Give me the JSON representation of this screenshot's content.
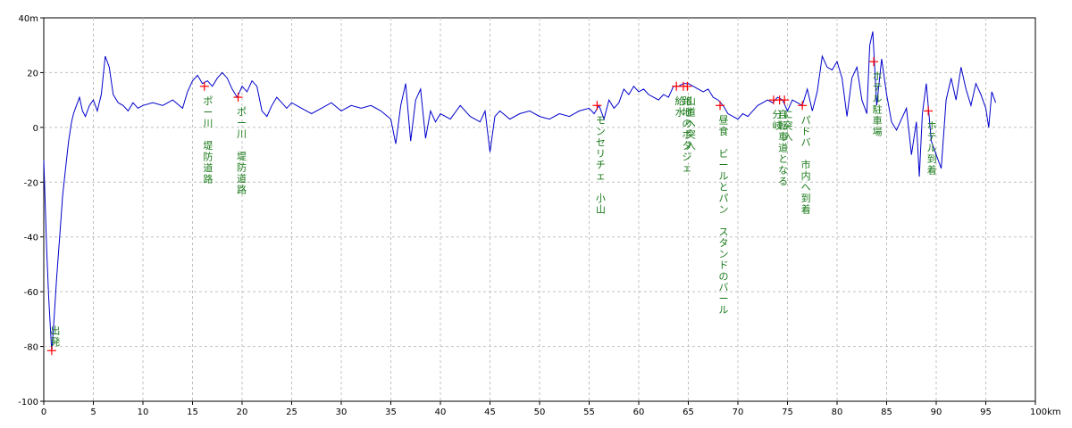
{
  "chart_data": {
    "type": "line",
    "title": "",
    "xlabel": "",
    "ylabel": "",
    "x_unit": "km",
    "y_unit": "m",
    "xlim": [
      0,
      100
    ],
    "ylim": [
      -100,
      40
    ],
    "grid": true,
    "x_ticks": [
      0,
      5,
      10,
      15,
      20,
      25,
      30,
      35,
      40,
      45,
      50,
      55,
      60,
      65,
      70,
      75,
      80,
      85,
      90,
      95,
      100
    ],
    "y_ticks": [
      -100,
      -80,
      -60,
      -40,
      -20,
      0,
      20,
      40
    ],
    "x_tick_labels": [
      "0",
      "5",
      "10",
      "15",
      "20",
      "25",
      "30",
      "35",
      "40",
      "45",
      "50",
      "55",
      "60",
      "65",
      "70",
      "75",
      "80",
      "85",
      "90",
      "95",
      "100km"
    ],
    "y_tick_labels": [
      "-100",
      "-80",
      "-60",
      "-40",
      "-20",
      "0",
      "20",
      "40m"
    ],
    "line_color": "#0000cc",
    "marker_color": "#ff0000",
    "annotation_color": "#1a7a1a",
    "series": [
      {
        "points": [
          [
            0,
            -12
          ],
          [
            0.3,
            -45
          ],
          [
            0.5,
            -62
          ],
          [
            0.8,
            -82
          ],
          [
            1.0,
            -72
          ],
          [
            1.3,
            -55
          ],
          [
            1.6,
            -40
          ],
          [
            1.9,
            -25
          ],
          [
            2.2,
            -15
          ],
          [
            2.5,
            -5
          ],
          [
            2.8,
            2
          ],
          [
            3.0,
            5
          ],
          [
            3.3,
            8
          ],
          [
            3.6,
            11
          ],
          [
            3.9,
            6
          ],
          [
            4.2,
            4
          ],
          [
            4.6,
            8
          ],
          [
            5.0,
            10
          ],
          [
            5.4,
            6
          ],
          [
            5.8,
            12
          ],
          [
            6.2,
            26
          ],
          [
            6.6,
            22
          ],
          [
            7.0,
            12
          ],
          [
            7.5,
            9
          ],
          [
            8.0,
            8
          ],
          [
            8.5,
            6
          ],
          [
            9.0,
            9
          ],
          [
            9.5,
            7
          ],
          [
            10,
            8
          ],
          [
            11,
            9
          ],
          [
            12,
            8
          ],
          [
            13,
            10
          ],
          [
            14,
            7
          ],
          [
            14.5,
            13
          ],
          [
            15,
            17
          ],
          [
            15.5,
            19
          ],
          [
            16,
            16
          ],
          [
            16.5,
            17
          ],
          [
            17,
            15
          ],
          [
            17.5,
            18
          ],
          [
            18,
            20
          ],
          [
            18.5,
            18
          ],
          [
            19,
            14
          ],
          [
            19.5,
            11
          ],
          [
            20,
            15
          ],
          [
            20.5,
            13
          ],
          [
            21,
            17
          ],
          [
            21.5,
            15
          ],
          [
            22,
            6
          ],
          [
            22.5,
            4
          ],
          [
            23,
            8
          ],
          [
            23.5,
            11
          ],
          [
            24,
            9
          ],
          [
            24.5,
            7
          ],
          [
            25,
            9
          ],
          [
            26,
            7
          ],
          [
            27,
            5
          ],
          [
            28,
            7
          ],
          [
            29,
            9
          ],
          [
            30,
            6
          ],
          [
            31,
            8
          ],
          [
            32,
            7
          ],
          [
            33,
            8
          ],
          [
            34,
            6
          ],
          [
            35,
            3
          ],
          [
            35.5,
            -6
          ],
          [
            36,
            8
          ],
          [
            36.5,
            16
          ],
          [
            37,
            -5
          ],
          [
            37.5,
            10
          ],
          [
            38,
            14
          ],
          [
            38.5,
            -4
          ],
          [
            39,
            6
          ],
          [
            39.5,
            2
          ],
          [
            40,
            5
          ],
          [
            41,
            3
          ],
          [
            42,
            8
          ],
          [
            43,
            4
          ],
          [
            44,
            2
          ],
          [
            44.5,
            6
          ],
          [
            45,
            -9
          ],
          [
            45.5,
            4
          ],
          [
            46,
            6
          ],
          [
            47,
            3
          ],
          [
            48,
            5
          ],
          [
            49,
            6
          ],
          [
            50,
            4
          ],
          [
            51,
            3
          ],
          [
            52,
            5
          ],
          [
            53,
            4
          ],
          [
            54,
            6
          ],
          [
            55,
            7
          ],
          [
            55.5,
            5
          ],
          [
            56,
            8
          ],
          [
            56.5,
            3
          ],
          [
            57,
            10
          ],
          [
            57.5,
            7
          ],
          [
            58,
            9
          ],
          [
            58.5,
            14
          ],
          [
            59,
            12
          ],
          [
            59.5,
            15
          ],
          [
            60,
            13
          ],
          [
            60.5,
            14
          ],
          [
            61,
            12
          ],
          [
            61.5,
            11
          ],
          [
            62,
            10
          ],
          [
            62.5,
            12
          ],
          [
            63,
            11
          ],
          [
            63.5,
            15
          ],
          [
            64,
            15
          ],
          [
            64.5,
            16
          ],
          [
            65,
            16
          ],
          [
            65.5,
            15
          ],
          [
            66,
            14
          ],
          [
            66.5,
            13
          ],
          [
            67,
            14
          ],
          [
            67.5,
            11
          ],
          [
            68,
            10
          ],
          [
            68.5,
            8
          ],
          [
            69,
            5
          ],
          [
            69.5,
            4
          ],
          [
            70,
            3
          ],
          [
            70.5,
            5
          ],
          [
            71,
            4
          ],
          [
            71.5,
            6
          ],
          [
            72,
            8
          ],
          [
            72.5,
            9
          ],
          [
            73,
            10
          ],
          [
            73.5,
            9
          ],
          [
            74,
            11
          ],
          [
            74.5,
            10
          ],
          [
            75,
            6
          ],
          [
            75.5,
            10
          ],
          [
            76,
            9
          ],
          [
            76.5,
            8
          ],
          [
            77,
            14
          ],
          [
            77.5,
            6
          ],
          [
            78,
            13
          ],
          [
            78.5,
            26
          ],
          [
            79,
            22
          ],
          [
            79.5,
            21
          ],
          [
            80,
            24
          ],
          [
            80.5,
            18
          ],
          [
            81,
            4
          ],
          [
            81.5,
            18
          ],
          [
            82,
            22
          ],
          [
            82.5,
            10
          ],
          [
            83,
            5
          ],
          [
            83.3,
            30
          ],
          [
            83.6,
            35
          ],
          [
            84,
            8
          ],
          [
            84.5,
            25
          ],
          [
            85,
            12
          ],
          [
            85.5,
            2
          ],
          [
            86,
            -1
          ],
          [
            86.5,
            3
          ],
          [
            87,
            7
          ],
          [
            87.5,
            -10
          ],
          [
            88,
            2
          ],
          [
            88.3,
            -18
          ],
          [
            88.6,
            5
          ],
          [
            89,
            16
          ],
          [
            89.5,
            -5
          ],
          [
            90,
            -10
          ],
          [
            90.5,
            -15
          ],
          [
            91,
            10
          ],
          [
            91.5,
            18
          ],
          [
            92,
            10
          ],
          [
            92.5,
            22
          ],
          [
            93,
            14
          ],
          [
            93.5,
            8
          ],
          [
            94,
            16
          ],
          [
            94.5,
            12
          ],
          [
            95,
            7
          ],
          [
            95.3,
            0
          ],
          [
            95.6,
            13
          ],
          [
            96,
            9
          ]
        ]
      }
    ],
    "markers": [
      {
        "x": 0.8,
        "y": -81.5,
        "label": "出発"
      },
      {
        "x": 16.2,
        "y": 15,
        "label": "ポー川　堤防道路"
      },
      {
        "x": 19.6,
        "y": 11,
        "label": "ポー川　堤防道路"
      },
      {
        "x": 55.8,
        "y": 8,
        "label": "モンセリチェ　小山"
      },
      {
        "x": 63.8,
        "y": 15,
        "label": "給水"
      },
      {
        "x": 64.5,
        "y": 15,
        "label": "路地のポタジェ"
      },
      {
        "x": 64.9,
        "y": 15,
        "label": "山道へ突入"
      },
      {
        "x": 68.2,
        "y": 8,
        "label": "昼食　ビールとパン　スタンドのバール"
      },
      {
        "x": 73.6,
        "y": 10,
        "label": "分岐"
      },
      {
        "x": 74.2,
        "y": 10,
        "label": "自転車道となる"
      },
      {
        "x": 74.7,
        "y": 10,
        "label": "に突入"
      },
      {
        "x": 76.5,
        "y": 8,
        "label": "パドバ　市内へ到着"
      },
      {
        "x": 83.7,
        "y": 24,
        "label": "ホテル駐車場"
      },
      {
        "x": 89.2,
        "y": 6,
        "label": "ホテル到着"
      }
    ]
  }
}
